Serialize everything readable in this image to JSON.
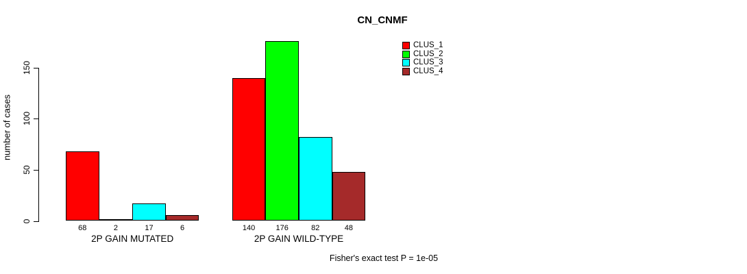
{
  "title": "CN_CNMF",
  "ylabel": "number of cases",
  "annotation": "Fisher's exact test P = 1e-05",
  "chart_data": {
    "type": "bar",
    "title": "CN_CNMF",
    "xlabel": "",
    "ylabel": "number of cases",
    "categories": [
      "2P GAIN MUTATED",
      "2P GAIN WILD-TYPE"
    ],
    "series": [
      {
        "name": "CLUS_1",
        "color": "#ff0000",
        "values": [
          68,
          140
        ]
      },
      {
        "name": "CLUS_2",
        "color": "#00ff00",
        "values": [
          2,
          176
        ]
      },
      {
        "name": "CLUS_3",
        "color": "#00ffff",
        "values": [
          17,
          82
        ]
      },
      {
        "name": "CLUS_4",
        "color": "#a52a2a",
        "values": [
          6,
          48
        ]
      }
    ],
    "bar_value_labels": [
      [
        68,
        2,
        17,
        6
      ],
      [
        140,
        176,
        82,
        48
      ]
    ],
    "yticks": [
      0,
      50,
      100,
      150
    ],
    "ylim": [
      0,
      176
    ],
    "grid": false,
    "bar_border_color": "#000000",
    "axis_color": "#000000",
    "legend_position": "top-right",
    "legend_entries": [
      "CLUS_1",
      "CLUS_2",
      "CLUS_3",
      "CLUS_4"
    ],
    "annotation": "Fisher's exact test P = 1e-05"
  }
}
